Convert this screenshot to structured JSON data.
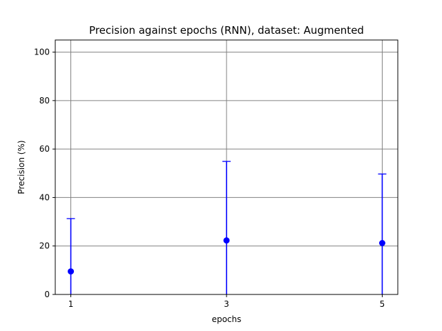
{
  "chart_data": {
    "type": "scatter",
    "title": "Precision against epochs (RNN), dataset: Augmented",
    "xlabel": "epochs",
    "ylabel": "Precision (%)",
    "x": [
      1,
      3,
      5
    ],
    "y": [
      9.5,
      22.3,
      21.2
    ],
    "error_lower": [
      0,
      0,
      0
    ],
    "error_upper": [
      31.3,
      54.9,
      49.7
    ],
    "xticks": [
      1,
      3,
      5
    ],
    "yticks": [
      0,
      20,
      40,
      60,
      80,
      100
    ],
    "xlim": [
      0.8,
      5.2
    ],
    "ylim": [
      0,
      105
    ],
    "grid": true,
    "colors": {
      "marker": "#0000ff",
      "grid": "#808080",
      "axes": "#000000"
    }
  }
}
